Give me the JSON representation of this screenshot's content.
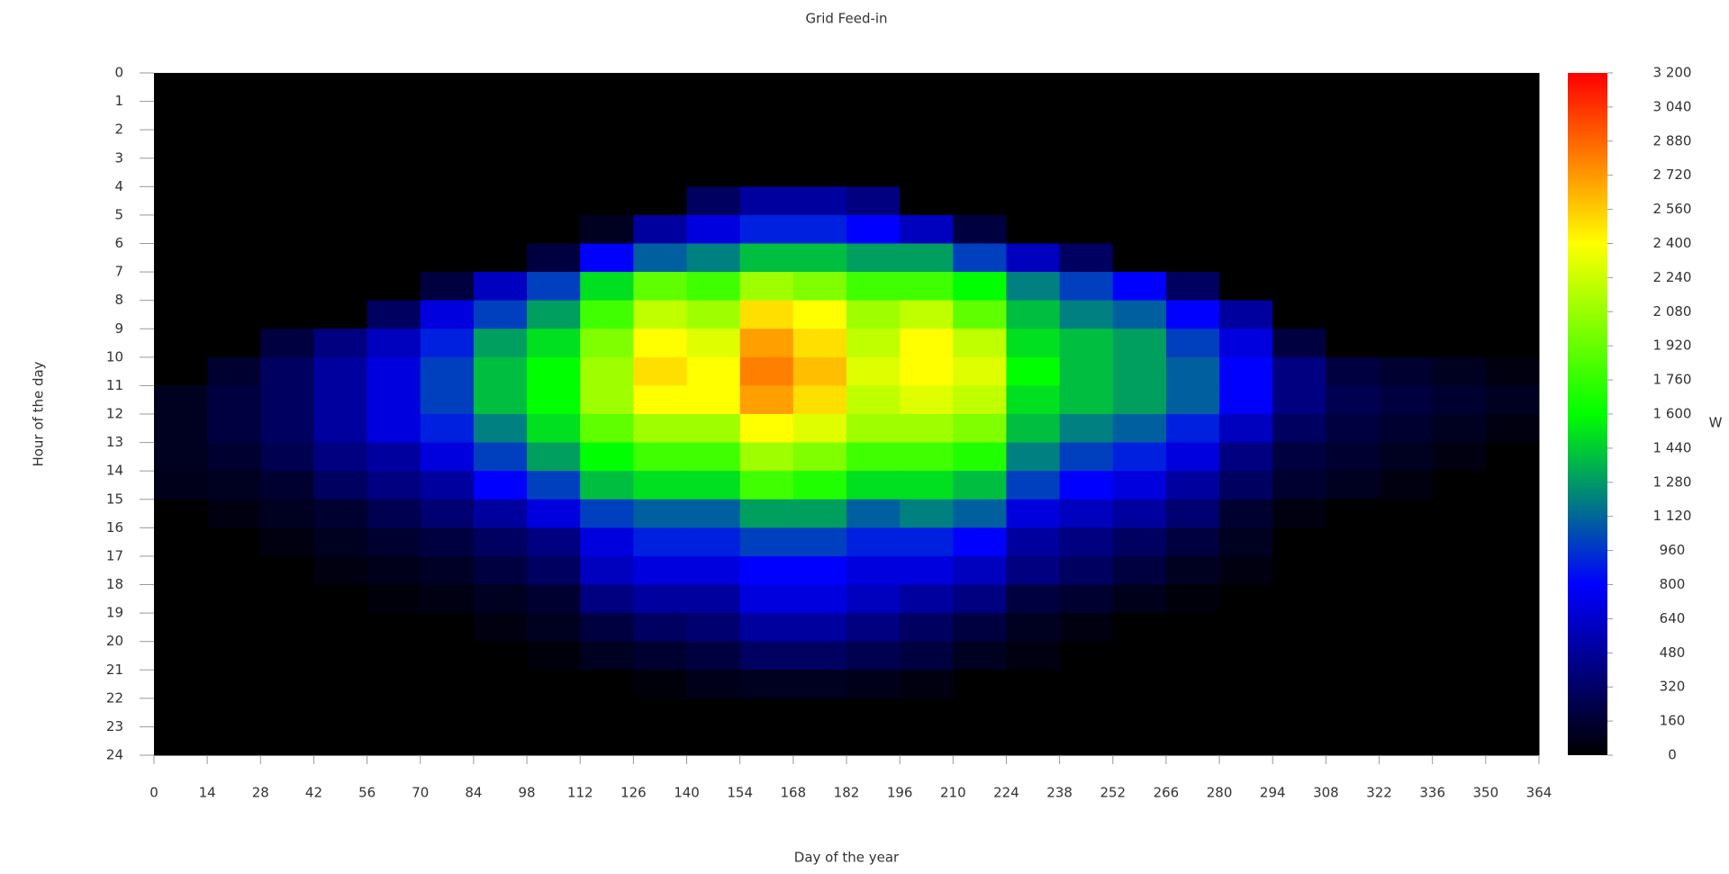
{
  "chart_data": {
    "type": "heatmap",
    "title": "Grid Feed-in",
    "xlabel": "Day of the year",
    "ylabel": "Hour of the day",
    "colorbar_label": "W",
    "xlim": [
      0,
      364
    ],
    "ylim": [
      0,
      24
    ],
    "xticks": [
      0,
      14,
      28,
      42,
      56,
      70,
      84,
      98,
      112,
      126,
      140,
      154,
      168,
      182,
      196,
      210,
      224,
      238,
      252,
      266,
      280,
      294,
      308,
      322,
      336,
      350,
      364
    ],
    "yticks": [
      0,
      1,
      2,
      3,
      4,
      5,
      6,
      7,
      8,
      9,
      10,
      11,
      12,
      13,
      14,
      15,
      16,
      17,
      18,
      19,
      20,
      21,
      22,
      23,
      24
    ],
    "x_bins": [
      0,
      14,
      28,
      42,
      56,
      70,
      84,
      98,
      112,
      126,
      140,
      154,
      168,
      182,
      196,
      210,
      224,
      238,
      252,
      266,
      280,
      294,
      308,
      322,
      336,
      350,
      364
    ],
    "y_bins": [
      0,
      1,
      2,
      3,
      4,
      5,
      6,
      7,
      8,
      9,
      10,
      11,
      12,
      13,
      14,
      15,
      16,
      17,
      18,
      19,
      20,
      21,
      22,
      23,
      24
    ],
    "zlim": [
      0,
      3200
    ],
    "zticks": [
      0,
      160,
      320,
      480,
      640,
      800,
      960,
      {
        "value": 1120,
        "label": "1 120"
      },
      {
        "value": 1280,
        "label": "1 280"
      },
      {
        "value": 1440,
        "label": "1 440"
      },
      {
        "value": 1600,
        "label": "1 600"
      },
      {
        "value": 1760,
        "label": "1 760"
      },
      {
        "value": 1920,
        "label": "1 920"
      },
      {
        "value": 2080,
        "label": "2 080"
      },
      {
        "value": 2240,
        "label": "2 240"
      },
      {
        "value": 2400,
        "label": "2 400"
      },
      {
        "value": 2560,
        "label": "2 560"
      },
      {
        "value": 2720,
        "label": "2 720"
      },
      {
        "value": 2880,
        "label": "2 880"
      },
      {
        "value": 3040,
        "label": "3 040"
      },
      {
        "value": 3200,
        "label": "3 200"
      }
    ],
    "colorscale": [
      [
        0,
        "#000000"
      ],
      [
        800,
        "#0000ff"
      ],
      [
        1600,
        "#00ff00"
      ],
      [
        2400,
        "#ffff00"
      ],
      [
        3200,
        "#ff0000"
      ]
    ],
    "z": [
      [
        0,
        0,
        0,
        0,
        0,
        0,
        0,
        0,
        0,
        0,
        0,
        0,
        0,
        0,
        0,
        0,
        0,
        0,
        0,
        0,
        0,
        0,
        0,
        0,
        0,
        0
      ],
      [
        0,
        0,
        0,
        0,
        0,
        0,
        0,
        0,
        0,
        0,
        0,
        0,
        0,
        0,
        0,
        0,
        0,
        0,
        0,
        0,
        0,
        0,
        0,
        0,
        0,
        0
      ],
      [
        0,
        0,
        0,
        0,
        0,
        0,
        0,
        0,
        0,
        0,
        0,
        0,
        0,
        0,
        0,
        0,
        0,
        0,
        0,
        0,
        0,
        0,
        0,
        0,
        0,
        0
      ],
      [
        0,
        0,
        0,
        0,
        0,
        0,
        0,
        0,
        0,
        0,
        0,
        0,
        0,
        0,
        0,
        0,
        0,
        0,
        0,
        0,
        0,
        0,
        0,
        0,
        0,
        0
      ],
      [
        0,
        0,
        0,
        0,
        0,
        0,
        0,
        0,
        0,
        0,
        300,
        500,
        500,
        400,
        0,
        0,
        0,
        0,
        0,
        0,
        0,
        0,
        0,
        0,
        0,
        0
      ],
      [
        0,
        0,
        0,
        0,
        0,
        0,
        0,
        0,
        100,
        500,
        700,
        900,
        900,
        800,
        600,
        200,
        0,
        0,
        0,
        0,
        0,
        0,
        0,
        0,
        0,
        0
      ],
      [
        0,
        0,
        0,
        0,
        0,
        0,
        0,
        200,
        800,
        1100,
        1200,
        1400,
        1400,
        1300,
        1300,
        1000,
        600,
        300,
        0,
        0,
        0,
        0,
        0,
        0,
        0,
        0
      ],
      [
        0,
        0,
        0,
        0,
        0,
        200,
        600,
        1000,
        1500,
        1900,
        1800,
        2100,
        2000,
        1800,
        1800,
        1600,
        1200,
        1000,
        800,
        300,
        0,
        0,
        0,
        0,
        0,
        0
      ],
      [
        0,
        0,
        0,
        0,
        300,
        700,
        1000,
        1300,
        1800,
        2200,
        2100,
        2500,
        2400,
        2100,
        2200,
        1900,
        1400,
        1200,
        1100,
        800,
        500,
        0,
        0,
        0,
        0,
        0
      ],
      [
        0,
        0,
        200,
        400,
        600,
        900,
        1300,
        1500,
        2000,
        2400,
        2300,
        2700,
        2500,
        2200,
        2400,
        2200,
        1500,
        1400,
        1300,
        1000,
        700,
        200,
        0,
        0,
        0,
        0
      ],
      [
        0,
        150,
        300,
        500,
        700,
        1000,
        1400,
        1600,
        2100,
        2500,
        2400,
        2800,
        2600,
        2300,
        2400,
        2300,
        1600,
        1400,
        1300,
        1100,
        800,
        400,
        200,
        150,
        100,
        50
      ],
      [
        100,
        200,
        300,
        500,
        700,
        1000,
        1400,
        1600,
        2100,
        2400,
        2400,
        2700,
        2500,
        2200,
        2300,
        2200,
        1500,
        1400,
        1300,
        1100,
        800,
        400,
        250,
        200,
        150,
        100
      ],
      [
        100,
        200,
        300,
        500,
        700,
        900,
        1200,
        1500,
        1900,
        2100,
        2100,
        2400,
        2300,
        2100,
        2100,
        2000,
        1400,
        1200,
        1100,
        900,
        600,
        300,
        200,
        150,
        100,
        50
      ],
      [
        100,
        150,
        250,
        400,
        500,
        700,
        1000,
        1300,
        1600,
        1800,
        1800,
        2100,
        2000,
        1800,
        1800,
        1700,
        1200,
        1000,
        900,
        700,
        400,
        200,
        150,
        100,
        50,
        0
      ],
      [
        80,
        100,
        150,
        300,
        400,
        500,
        800,
        1000,
        1400,
        1500,
        1500,
        1800,
        1700,
        1500,
        1500,
        1400,
        1000,
        800,
        700,
        500,
        300,
        150,
        100,
        50,
        0,
        0
      ],
      [
        0,
        50,
        100,
        150,
        250,
        350,
        500,
        700,
        1000,
        1100,
        1100,
        1300,
        1300,
        1100,
        1200,
        1100,
        700,
        600,
        500,
        350,
        150,
        50,
        0,
        0,
        0,
        0
      ],
      [
        0,
        0,
        50,
        100,
        150,
        200,
        300,
        400,
        700,
        900,
        900,
        1000,
        1000,
        900,
        900,
        800,
        500,
        400,
        300,
        200,
        100,
        0,
        0,
        0,
        0,
        0
      ],
      [
        0,
        0,
        0,
        50,
        80,
        120,
        200,
        300,
        600,
        700,
        700,
        800,
        800,
        700,
        700,
        600,
        400,
        300,
        200,
        100,
        50,
        0,
        0,
        0,
        0,
        0
      ],
      [
        0,
        0,
        0,
        0,
        30,
        60,
        100,
        150,
        400,
        500,
        500,
        700,
        700,
        600,
        500,
        400,
        200,
        150,
        80,
        30,
        0,
        0,
        0,
        0,
        0,
        0
      ],
      [
        0,
        0,
        0,
        0,
        0,
        0,
        50,
        100,
        200,
        300,
        350,
        500,
        500,
        400,
        300,
        200,
        100,
        50,
        0,
        0,
        0,
        0,
        0,
        0,
        0,
        0
      ],
      [
        0,
        0,
        0,
        0,
        0,
        0,
        0,
        30,
        100,
        150,
        200,
        300,
        300,
        250,
        200,
        100,
        50,
        0,
        0,
        0,
        0,
        0,
        0,
        0,
        0,
        0
      ],
      [
        0,
        0,
        0,
        0,
        0,
        0,
        0,
        0,
        0,
        30,
        80,
        100,
        100,
        80,
        50,
        0,
        0,
        0,
        0,
        0,
        0,
        0,
        0,
        0,
        0,
        0
      ],
      [
        0,
        0,
        0,
        0,
        0,
        0,
        0,
        0,
        0,
        0,
        0,
        0,
        0,
        0,
        0,
        0,
        0,
        0,
        0,
        0,
        0,
        0,
        0,
        0,
        0,
        0
      ],
      [
        0,
        0,
        0,
        0,
        0,
        0,
        0,
        0,
        0,
        0,
        0,
        0,
        0,
        0,
        0,
        0,
        0,
        0,
        0,
        0,
        0,
        0,
        0,
        0,
        0,
        0
      ]
    ]
  }
}
